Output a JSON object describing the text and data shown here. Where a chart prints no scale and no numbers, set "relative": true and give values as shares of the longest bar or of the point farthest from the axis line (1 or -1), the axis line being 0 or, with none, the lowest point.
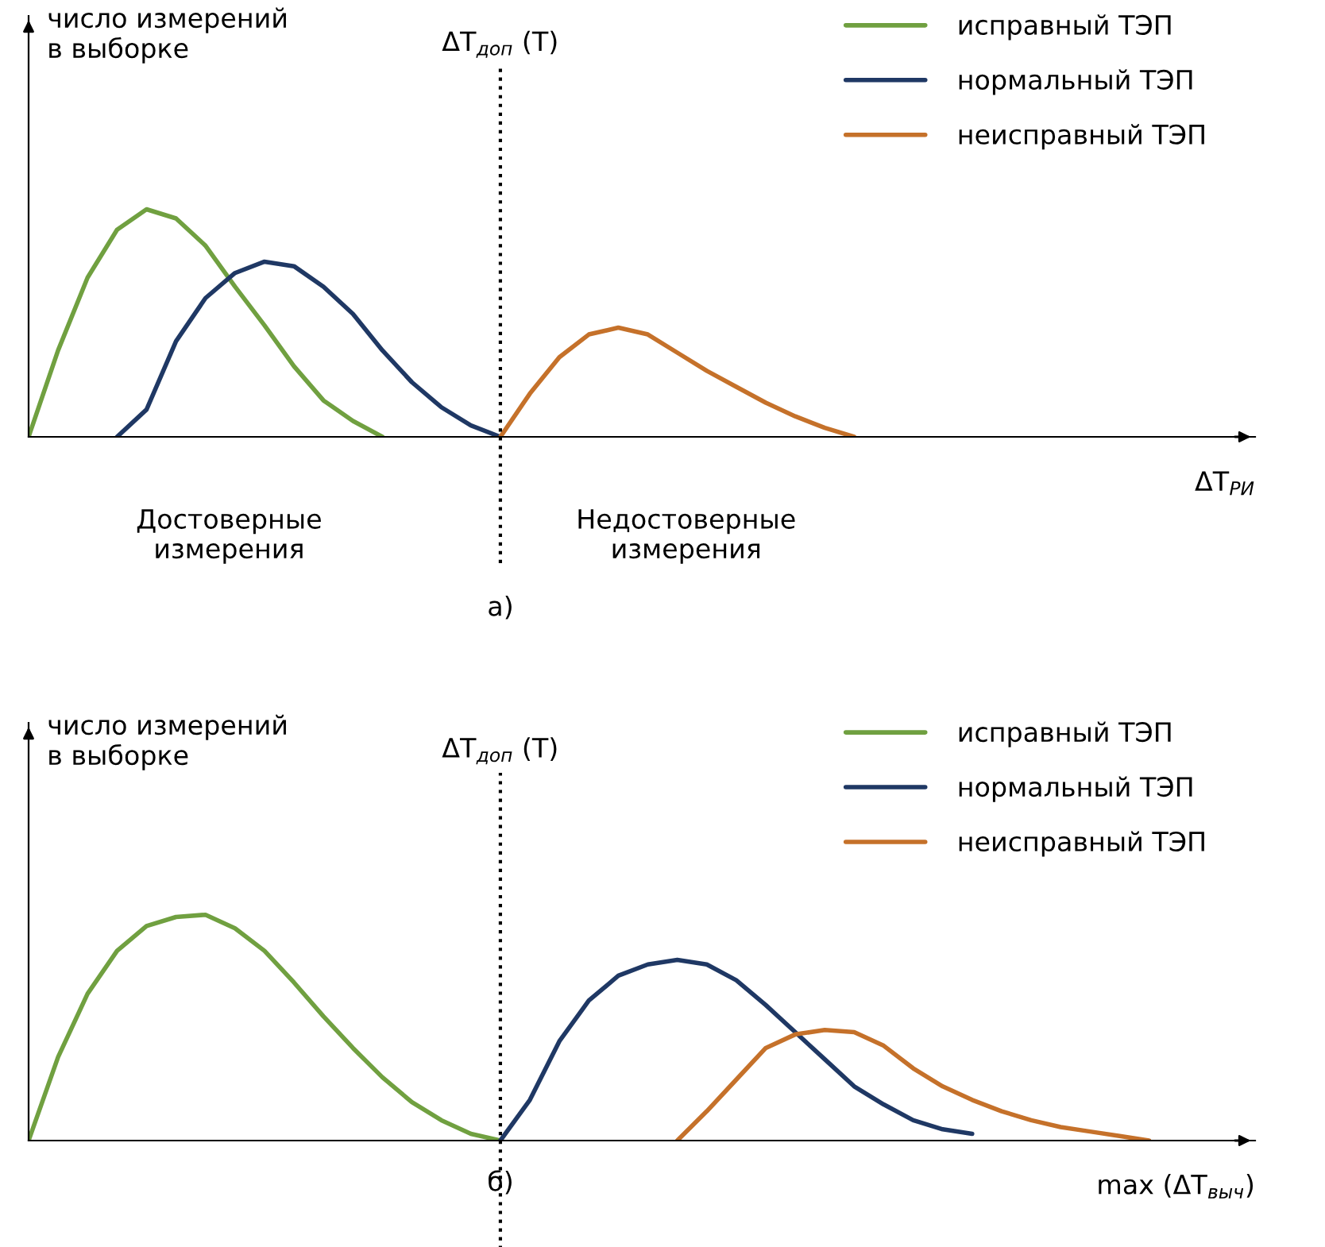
{
  "chart_data": [
    {
      "type": "line",
      "relative": true,
      "ylabel": "число измерений\nв выборке",
      "xlabel": "ΔT$_{РИ}$",
      "legend": "top right",
      "categories": [
        null,
        null,
        null,
        null,
        null,
        null,
        null,
        null,
        null,
        null,
        null,
        null,
        null,
        null,
        null,
        null,
        null,
        null,
        null,
        null,
        null,
        null,
        null,
        null,
        null,
        null,
        null,
        null,
        null,
        null,
        null,
        null,
        null,
        null,
        null,
        null,
        null,
        null,
        null,
        null,
        null,
        null
      ],
      "series": [
        {
          "name": "исправный ТЭП",
          "color": "#70a040",
          "values": [
            0,
            0.38,
            0.7,
            0.91,
            1.0,
            0.96,
            0.84,
            0.66,
            0.49,
            0.31,
            0.16,
            0.07,
            0,
            null,
            null,
            null,
            null,
            null,
            null,
            null,
            null,
            null,
            null,
            null,
            null,
            null,
            null,
            null,
            null,
            null,
            null,
            null,
            null,
            null,
            null,
            null,
            null,
            null,
            null,
            null,
            null,
            null
          ]
        },
        {
          "name": "нормальный ТЭП",
          "color": "#1f3864",
          "values": [
            null,
            null,
            null,
            0,
            0.12,
            0.42,
            0.61,
            0.72,
            0.77,
            0.75,
            0.66,
            0.54,
            0.38,
            0.24,
            0.13,
            0.05,
            0,
            null,
            null,
            null,
            null,
            null,
            null,
            null,
            null,
            null,
            null,
            null,
            null,
            null,
            null,
            null,
            null,
            null,
            null,
            null,
            null,
            null,
            null,
            null,
            null,
            null
          ]
        },
        {
          "name": "неисправный ТЭП",
          "color": "#c5712a",
          "values": [
            null,
            null,
            null,
            null,
            null,
            null,
            null,
            null,
            null,
            null,
            null,
            null,
            null,
            null,
            null,
            null,
            0,
            0.19,
            0.35,
            0.45,
            0.48,
            0.45,
            0.37,
            0.29,
            0.22,
            0.15,
            0.09,
            0.04,
            0,
            null,
            null,
            null,
            null,
            null,
            null,
            null,
            null,
            null,
            null,
            null,
            null,
            null
          ]
        }
      ],
      "annotations": [
        "ΔT$_{доп}$ (T)",
        "Достоверные\nизмерения",
        "Недостоверные\nизмерения",
        "а)"
      ]
    },
    {
      "type": "line",
      "relative": true,
      "ylabel": "число измерений\nв выборке",
      "xlabel": "max (ΔT$_{выч}$)",
      "legend": "top right",
      "categories": [
        null,
        null,
        null,
        null,
        null,
        null,
        null,
        null,
        null,
        null,
        null,
        null,
        null,
        null,
        null,
        null,
        null,
        null,
        null,
        null,
        null,
        null,
        null,
        null,
        null,
        null,
        null,
        null,
        null,
        null,
        null,
        null,
        null,
        null,
        null,
        null,
        null,
        null,
        null,
        null,
        null,
        null
      ],
      "series": [
        {
          "name": "исправный ТЭП",
          "color": "#70a040",
          "values": [
            0,
            0.37,
            0.65,
            0.84,
            0.95,
            0.99,
            1.0,
            0.94,
            0.84,
            0.7,
            0.55,
            0.41,
            0.28,
            0.17,
            0.09,
            0.03,
            0,
            null,
            null,
            null,
            null,
            null,
            null,
            null,
            null,
            null,
            null,
            null,
            null,
            null,
            null,
            null,
            null,
            null,
            null,
            null,
            null,
            null,
            null,
            null,
            null,
            null
          ]
        },
        {
          "name": "нормальный ТЭП",
          "color": "#1f3864",
          "values": [
            null,
            null,
            null,
            null,
            null,
            null,
            null,
            null,
            null,
            null,
            null,
            null,
            null,
            null,
            null,
            null,
            0,
            0.18,
            0.44,
            0.62,
            0.73,
            0.78,
            0.8,
            0.78,
            0.71,
            0.6,
            0.48,
            0.36,
            0.24,
            0.16,
            0.09,
            0.05,
            0.03,
            null,
            null,
            null,
            null,
            null,
            null,
            null,
            null,
            null
          ]
        },
        {
          "name": "неисправный ТЭП",
          "color": "#c5712a",
          "values": [
            null,
            null,
            null,
            null,
            null,
            null,
            null,
            null,
            null,
            null,
            null,
            null,
            null,
            null,
            null,
            null,
            null,
            null,
            null,
            null,
            null,
            null,
            0,
            0.13,
            0.27,
            0.41,
            0.47,
            0.49,
            0.48,
            0.42,
            0.32,
            0.24,
            0.18,
            0.13,
            0.09,
            0.06,
            0.04,
            0.02,
            0,
            null,
            null,
            null
          ]
        }
      ],
      "annotations": [
        "ΔT$_{доп}$ (T)",
        "б)"
      ]
    }
  ]
}
